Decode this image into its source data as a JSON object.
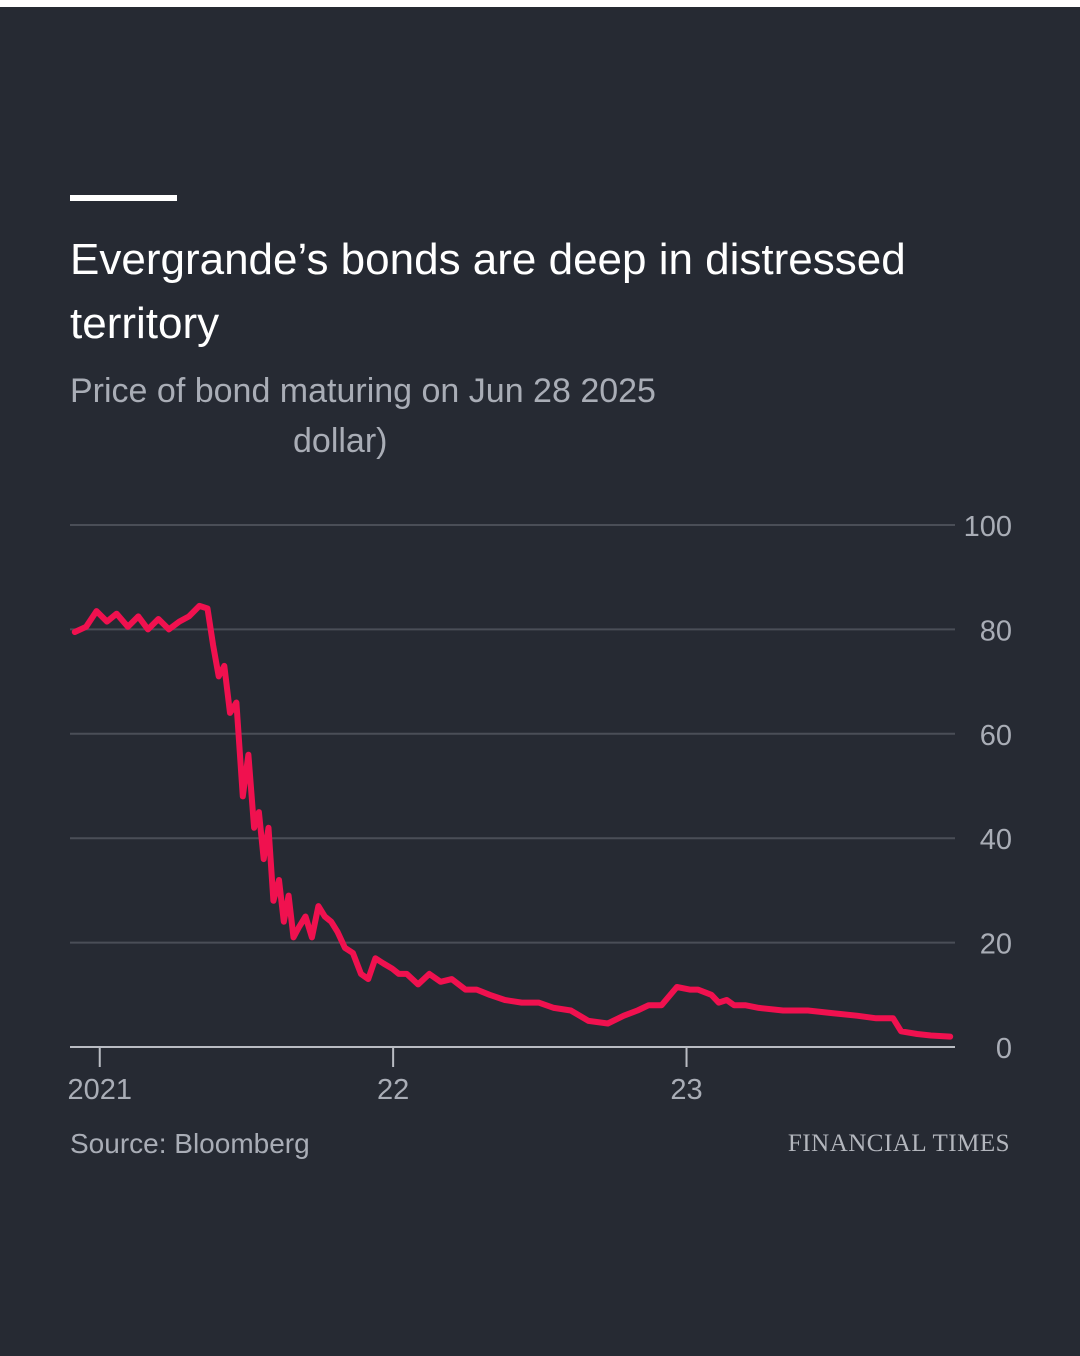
{
  "header": {
    "title": "Evergrande’s bonds are deep in distressed territory",
    "subtitle_line1": "Price of bond maturing on Jun 28 2025",
    "subtitle_line2": "dollar)"
  },
  "footer": {
    "source": "Source: Bloomberg",
    "brand": "FINANCIAL TIMES"
  },
  "colors": {
    "background": "#262a33",
    "line": "#f0114f",
    "gridline": "#4a4e57",
    "axis_text": "#a9adb6"
  },
  "chart_data": {
    "type": "line",
    "title": "Evergrande’s bonds are deep in distressed territory",
    "subtitle": "Price of bond maturing on Jun 28 2025 dollar)",
    "xlabel": "",
    "ylabel": "",
    "x_type": "date",
    "xlim": [
      "2020-11-25",
      "2023-12-01"
    ],
    "ylim": [
      0,
      100
    ],
    "y_ticks": [
      0,
      20,
      40,
      60,
      80,
      100
    ],
    "x_ticks": [
      {
        "date": "2021-01-01",
        "label": "2021"
      },
      {
        "date": "2022-01-01",
        "label": "22"
      },
      {
        "date": "2023-01-01",
        "label": "23"
      }
    ],
    "grid": true,
    "y_axis_side": "right",
    "legend": "none",
    "series": [
      {
        "x": [
          "2020-12-01",
          "2020-12-15",
          "2020-12-28",
          "2021-01-10",
          "2021-01-22",
          "2021-02-05",
          "2021-02-18",
          "2021-03-02",
          "2021-03-15",
          "2021-03-28",
          "2021-04-10",
          "2021-04-22",
          "2021-05-05",
          "2021-05-15",
          "2021-05-22",
          "2021-05-29",
          "2021-06-05",
          "2021-06-12",
          "2021-06-20",
          "2021-06-28",
          "2021-07-05",
          "2021-07-12",
          "2021-07-18",
          "2021-07-24",
          "2021-07-30",
          "2021-08-05",
          "2021-08-12",
          "2021-08-18",
          "2021-08-24",
          "2021-08-30",
          "2021-09-06",
          "2021-09-14",
          "2021-09-22",
          "2021-09-30",
          "2021-10-08",
          "2021-10-16",
          "2021-10-24",
          "2021-11-02",
          "2021-11-12",
          "2021-11-22",
          "2021-12-01",
          "2021-12-10",
          "2021-12-20",
          "2021-12-31",
          "2022-01-08",
          "2022-01-18",
          "2022-02-01",
          "2022-02-15",
          "2022-03-01",
          "2022-03-15",
          "2022-04-01",
          "2022-04-15",
          "2022-05-01",
          "2022-05-20",
          "2022-06-10",
          "2022-07-01",
          "2022-07-20",
          "2022-08-10",
          "2022-09-01",
          "2022-09-25",
          "2022-10-15",
          "2022-11-01",
          "2022-11-15",
          "2022-12-01",
          "2022-12-20",
          "2023-01-05",
          "2023-01-15",
          "2023-02-01",
          "2023-02-10",
          "2023-02-20",
          "2023-03-01",
          "2023-03-15",
          "2023-04-01",
          "2023-05-01",
          "2023-06-01",
          "2023-07-01",
          "2023-08-01",
          "2023-08-25",
          "2023-09-15",
          "2023-09-25",
          "2023-10-15",
          "2023-11-01",
          "2023-11-25"
        ],
        "y": [
          79.5,
          80.5,
          83.5,
          81.5,
          83,
          80.5,
          82.5,
          80,
          82,
          80,
          81.5,
          82.5,
          84.5,
          84,
          77,
          71,
          73,
          64,
          66,
          48,
          56,
          42,
          45,
          36,
          42,
          28,
          32,
          24,
          29,
          21,
          23,
          25,
          21,
          27,
          25,
          24,
          22,
          19,
          18,
          14,
          13,
          17,
          16,
          15,
          14,
          14,
          12,
          14,
          12.5,
          13,
          11,
          11,
          10,
          9,
          8.5,
          8.5,
          7.5,
          7,
          5,
          4.5,
          6,
          7,
          8,
          8,
          11.5,
          11,
          11,
          10,
          8.5,
          9,
          8,
          8,
          7.5,
          7,
          7,
          6.5,
          6,
          5.5,
          5.5,
          3,
          2.5,
          2.2,
          2
        ]
      }
    ]
  }
}
